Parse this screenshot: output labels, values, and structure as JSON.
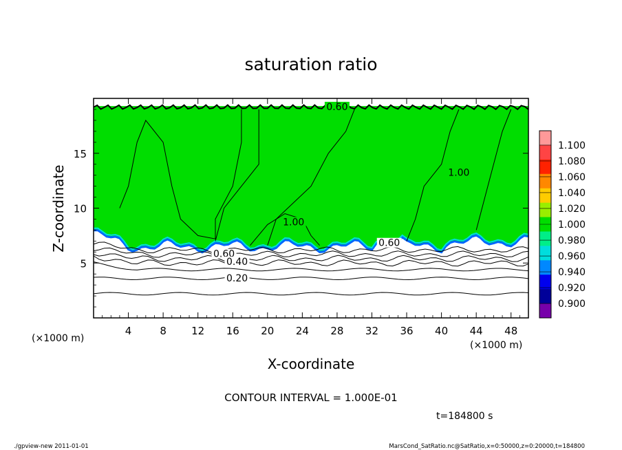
{
  "chart_data": {
    "type": "heatmap",
    "title": "saturation ratio",
    "xlabel": "X-coordinate",
    "ylabel": "Z-coordinate",
    "x_unit": "(×1000 m)",
    "y_unit": "(×1000 m)",
    "xlim": [
      0,
      50
    ],
    "ylim": [
      0,
      20
    ],
    "x_ticks": [
      4,
      8,
      12,
      16,
      20,
      24,
      28,
      32,
      36,
      40,
      44,
      48
    ],
    "y_ticks": [
      5,
      10,
      15
    ],
    "contour_interval": "CONTOUR INTERVAL = 1.000E-01",
    "time": "t=184800 s",
    "colorbar": {
      "levels": [
        "1.100",
        "1.080",
        "1.060",
        "1.040",
        "1.020",
        "1.000",
        "0.980",
        "0.960",
        "0.940",
        "0.920",
        "0.900"
      ],
      "colors": [
        "#ff9999",
        "#ff4444",
        "#ff2200",
        "#ff8800",
        "#ffcc00",
        "#99ee00",
        "#00dd00",
        "#00ee88",
        "#00dddd",
        "#0088ff",
        "#0000ee",
        "#000099",
        "#7700aa"
      ]
    },
    "contour_labels": [
      "0.60",
      "0.40",
      "0.20",
      "0.60",
      "1.00",
      "0.60",
      "1.00"
    ],
    "cloud_base_z": 6.5,
    "field_value_above_cloud_base": 1.0,
    "footer_left": "./gpview-new   2011-01-01",
    "footer_right": "MarsCond_SatRatio.nc@SatRatio,x=0:50000,z=0:20000,t=184800"
  }
}
